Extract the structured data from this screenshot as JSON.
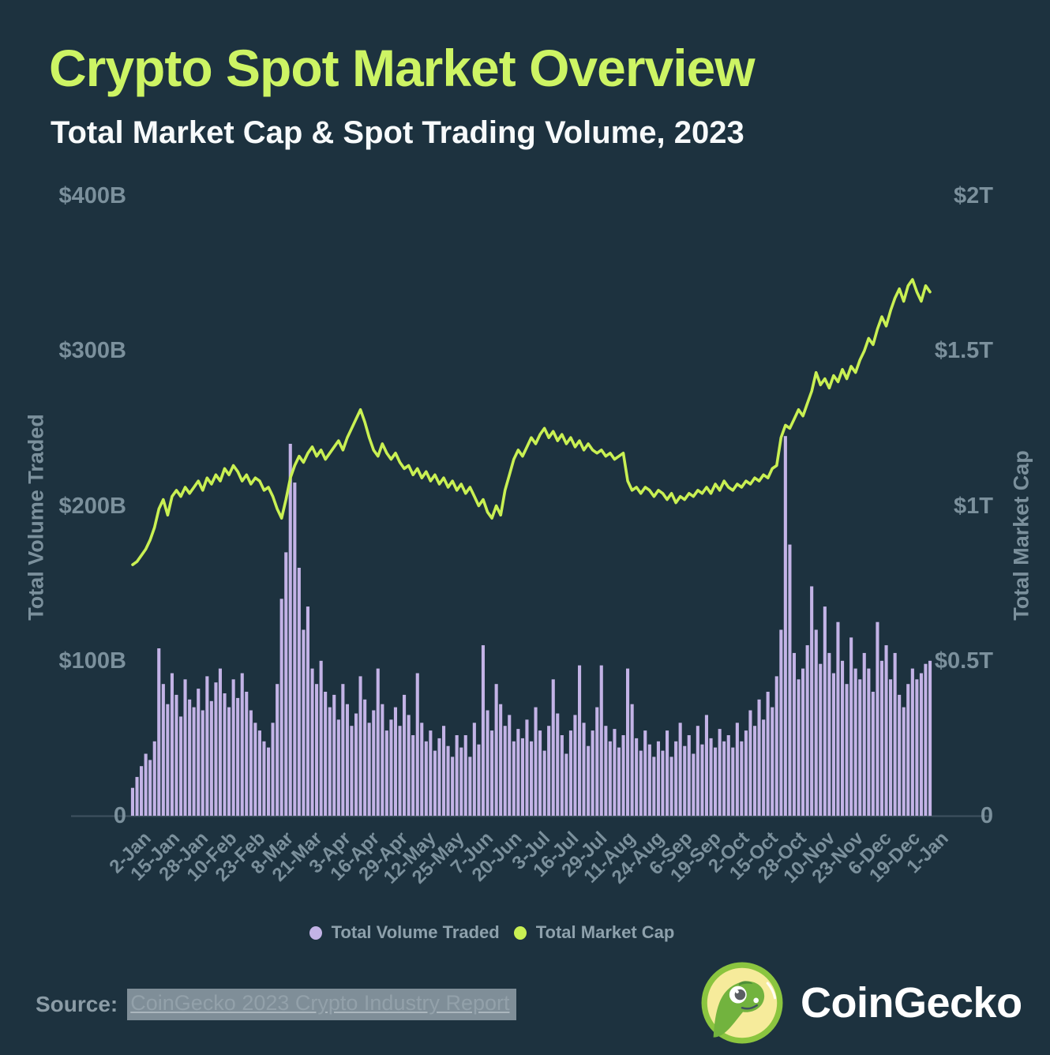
{
  "header": {
    "title": "Crypto Spot Market Overview",
    "subtitle": "Total Market Cap & Spot Trading Volume, 2023"
  },
  "colors": {
    "background": "#1d323f",
    "accent_lime": "#cdf464",
    "line": "#c9f053",
    "bar": "#c3b3e6",
    "axis_text": "#7b909c",
    "axis_line": "#3f5260",
    "legend_text": "#8ea1ac",
    "source_highlight": "#7f8e98",
    "white": "#ffffff"
  },
  "legend": {
    "items": [
      {
        "label": "Total Volume Traded",
        "color": "#c3b3e6"
      },
      {
        "label": "Total Market Cap",
        "color": "#c9f053"
      }
    ]
  },
  "source": {
    "label": "Source:",
    "link_text": "CoinGecko 2023 Crypto Industry Report"
  },
  "logo": {
    "text": "CoinGecko"
  },
  "chart_data": {
    "type": "bar+line",
    "title": "Crypto Spot Market Overview",
    "subtitle": "Total Market Cap & Spot Trading Volume, 2023",
    "grid": false,
    "legend_position": "bottom",
    "x_tick_labels": [
      "2-Jan",
      "15-Jan",
      "28-Jan",
      "10-Feb",
      "23-Feb",
      "8-Mar",
      "21-Mar",
      "3-Apr",
      "16-Apr",
      "29-Apr",
      "12-May",
      "25-May",
      "7-Jun",
      "20-Jun",
      "3-Jul",
      "16-Jul",
      "29-Jul",
      "11-Aug",
      "24-Aug",
      "6-Sep",
      "19-Sep",
      "2-Oct",
      "15-Oct",
      "28-Oct",
      "10-Nov",
      "23-Nov",
      "6-Dec",
      "19-Dec",
      "1-Jan"
    ],
    "x_tick_step_days": 13,
    "x_total_days": 364,
    "sample_step_days": 2,
    "left_axis": {
      "label": "Total Volume Traded",
      "unit": "$B",
      "range": [
        0,
        400
      ],
      "tick_step": 100,
      "tick_labels": [
        "$400B",
        "$300B",
        "$200B",
        "$100B",
        "0"
      ]
    },
    "right_axis": {
      "label": "Total Market Cap",
      "unit": "$T",
      "range": [
        0,
        2
      ],
      "tick_step": 0.5,
      "tick_labels": [
        "$2T",
        "$1.5T",
        "$1T",
        "$0.5T",
        "0"
      ]
    },
    "series": [
      {
        "name": "Total Volume Traded",
        "type": "bar",
        "axis": "left",
        "unit": "billions USD",
        "values": [
          18,
          25,
          32,
          40,
          36,
          48,
          108,
          85,
          72,
          92,
          78,
          64,
          88,
          75,
          70,
          82,
          68,
          90,
          74,
          86,
          95,
          79,
          70,
          88,
          76,
          92,
          80,
          68,
          60,
          55,
          48,
          44,
          60,
          85,
          140,
          170,
          240,
          215,
          160,
          120,
          135,
          95,
          85,
          100,
          80,
          70,
          78,
          62,
          85,
          72,
          58,
          66,
          90,
          75,
          60,
          68,
          95,
          72,
          55,
          62,
          70,
          58,
          78,
          65,
          52,
          92,
          60,
          48,
          55,
          42,
          50,
          58,
          45,
          38,
          52,
          44,
          52,
          38,
          60,
          46,
          110,
          68,
          55,
          85,
          72,
          58,
          65,
          48,
          56,
          50,
          62,
          48,
          70,
          55,
          42,
          58,
          88,
          66,
          52,
          40,
          55,
          65,
          97,
          60,
          45,
          55,
          70,
          97,
          58,
          48,
          56,
          44,
          52,
          95,
          72,
          50,
          42,
          55,
          46,
          38,
          48,
          42,
          55,
          38,
          48,
          60,
          45,
          52,
          40,
          58,
          46,
          65,
          50,
          44,
          56,
          48,
          52,
          44,
          60,
          48,
          55,
          68,
          58,
          75,
          62,
          80,
          70,
          90,
          120,
          245,
          175,
          105,
          88,
          95,
          110,
          148,
          120,
          98,
          135,
          105,
          92,
          125,
          100,
          85,
          115,
          95,
          88,
          105,
          95,
          80,
          125,
          100,
          110,
          88,
          105,
          78,
          70,
          85,
          95,
          88,
          92,
          98,
          100
        ]
      },
      {
        "name": "Total Market Cap",
        "type": "line",
        "axis": "right",
        "unit": "trillions USD",
        "values": [
          0.81,
          0.82,
          0.84,
          0.86,
          0.89,
          0.93,
          0.99,
          1.02,
          0.97,
          1.03,
          1.05,
          1.03,
          1.06,
          1.04,
          1.06,
          1.08,
          1.05,
          1.09,
          1.07,
          1.1,
          1.08,
          1.12,
          1.1,
          1.13,
          1.11,
          1.08,
          1.1,
          1.07,
          1.09,
          1.08,
          1.05,
          1.06,
          1.03,
          0.99,
          0.96,
          1.02,
          1.09,
          1.13,
          1.16,
          1.14,
          1.17,
          1.19,
          1.16,
          1.18,
          1.15,
          1.17,
          1.19,
          1.21,
          1.18,
          1.22,
          1.25,
          1.28,
          1.31,
          1.27,
          1.22,
          1.18,
          1.16,
          1.2,
          1.17,
          1.15,
          1.17,
          1.14,
          1.12,
          1.13,
          1.1,
          1.12,
          1.09,
          1.11,
          1.08,
          1.1,
          1.07,
          1.09,
          1.06,
          1.08,
          1.05,
          1.07,
          1.04,
          1.06,
          1.03,
          1.0,
          1.02,
          0.98,
          0.96,
          1.0,
          0.97,
          1.05,
          1.1,
          1.15,
          1.18,
          1.16,
          1.19,
          1.22,
          1.2,
          1.23,
          1.25,
          1.22,
          1.24,
          1.21,
          1.23,
          1.2,
          1.22,
          1.19,
          1.21,
          1.18,
          1.2,
          1.18,
          1.17,
          1.18,
          1.16,
          1.17,
          1.15,
          1.16,
          1.17,
          1.08,
          1.05,
          1.06,
          1.04,
          1.06,
          1.05,
          1.03,
          1.05,
          1.04,
          1.02,
          1.04,
          1.01,
          1.03,
          1.02,
          1.04,
          1.03,
          1.05,
          1.04,
          1.06,
          1.04,
          1.07,
          1.05,
          1.08,
          1.06,
          1.05,
          1.07,
          1.06,
          1.08,
          1.07,
          1.09,
          1.08,
          1.1,
          1.09,
          1.12,
          1.13,
          1.22,
          1.26,
          1.25,
          1.28,
          1.31,
          1.29,
          1.33,
          1.37,
          1.43,
          1.39,
          1.41,
          1.38,
          1.42,
          1.4,
          1.44,
          1.41,
          1.45,
          1.43,
          1.47,
          1.5,
          1.54,
          1.52,
          1.57,
          1.61,
          1.58,
          1.63,
          1.67,
          1.7,
          1.66,
          1.71,
          1.73,
          1.69,
          1.66,
          1.71,
          1.69
        ]
      }
    ]
  }
}
